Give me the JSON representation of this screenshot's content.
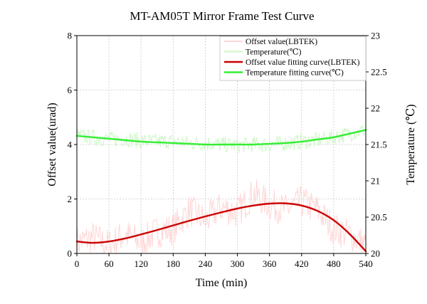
{
  "chart_data": {
    "type": "line",
    "title": "MT-AM05T Mirror Frame Test Curve",
    "xlabel": "Time (min)",
    "ylabel": "Offset value(urad)",
    "y2label": "Temperature (℃)",
    "xlim": [
      0,
      540
    ],
    "ylim": [
      0,
      8
    ],
    "y2lim": [
      20,
      23
    ],
    "xticks": [
      "0",
      "60",
      "120",
      "180",
      "240",
      "300",
      "360",
      "420",
      "480",
      "540"
    ],
    "yticks": [
      "0",
      "2",
      "4",
      "6",
      "8"
    ],
    "y2ticks": [
      "20",
      "20.5",
      "21",
      "21.5",
      "22",
      "22.5",
      "23"
    ],
    "grid": true,
    "legend_position": "top-right",
    "series": [
      {
        "name": "Offset value(LBTEK)",
        "axis": "left",
        "color": "#ffd6d6",
        "style": "noisy-raw",
        "x": [
          0,
          30,
          60,
          90,
          120,
          150,
          180,
          210,
          240,
          270,
          300,
          330,
          360,
          390,
          420,
          450,
          480,
          510,
          540
        ],
        "y": [
          0.4,
          0.6,
          0.3,
          0.7,
          0.4,
          0.8,
          0.9,
          1.6,
          1.2,
          1.7,
          1.5,
          2.2,
          1.8,
          1.6,
          1.9,
          1.6,
          0.9,
          0.7,
          0.3
        ],
        "spread": 1.2
      },
      {
        "name": "Temperature(℃)",
        "axis": "right",
        "color": "#cdf7c6",
        "style": "noisy-raw",
        "x": [
          0,
          30,
          60,
          90,
          120,
          150,
          180,
          210,
          240,
          270,
          300,
          330,
          360,
          390,
          420,
          450,
          480,
          510,
          540
        ],
        "y": [
          21.62,
          21.6,
          21.57,
          21.58,
          21.55,
          21.54,
          21.55,
          21.52,
          21.52,
          21.5,
          21.49,
          21.5,
          21.5,
          21.52,
          21.54,
          21.56,
          21.6,
          21.65,
          21.7
        ],
        "spread": 0.22
      },
      {
        "name": "Offset value fitting curve(LBTEK)",
        "axis": "left",
        "color": "#cc0000",
        "style": "fit",
        "x": [
          0,
          30,
          60,
          90,
          120,
          150,
          180,
          210,
          240,
          270,
          300,
          330,
          360,
          390,
          420,
          450,
          480,
          510,
          540
        ],
        "y": [
          0.44,
          0.39,
          0.44,
          0.55,
          0.7,
          0.86,
          1.03,
          1.2,
          1.36,
          1.51,
          1.65,
          1.76,
          1.83,
          1.84,
          1.76,
          1.56,
          1.22,
          0.71,
          0.08
        ]
      },
      {
        "name": "Temperature fitting curve(℃)",
        "axis": "right",
        "color": "#33ee33",
        "style": "fit",
        "x": [
          0,
          30,
          60,
          90,
          120,
          150,
          180,
          210,
          240,
          270,
          300,
          330,
          360,
          390,
          420,
          450,
          480,
          510,
          540
        ],
        "y": [
          21.62,
          21.6,
          21.58,
          21.56,
          21.54,
          21.53,
          21.52,
          21.51,
          21.5,
          21.5,
          21.5,
          21.5,
          21.51,
          21.52,
          21.54,
          21.57,
          21.6,
          21.65,
          21.7
        ]
      }
    ]
  }
}
